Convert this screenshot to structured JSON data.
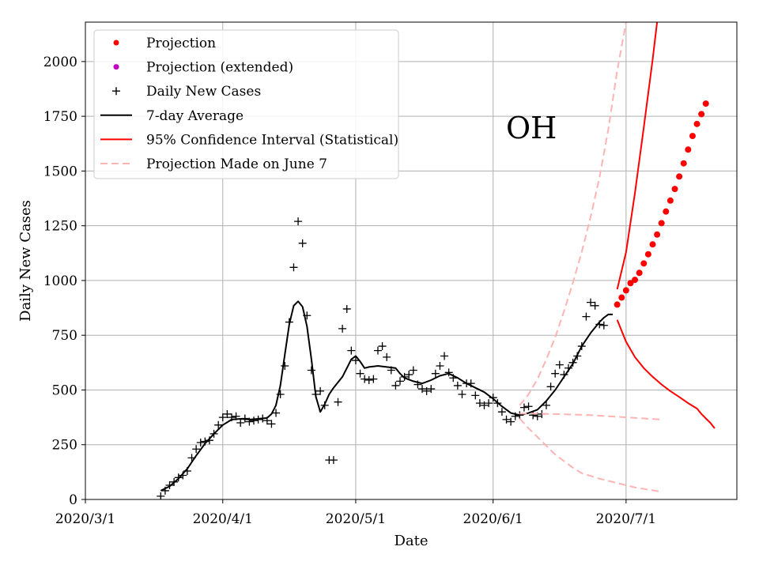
{
  "chart_data": {
    "type": "line",
    "title": "",
    "annotation": "OH",
    "xlabel": "Date",
    "ylabel": "Daily New Cases",
    "xlim": [
      0,
      147
    ],
    "ylim": [
      0,
      2180
    ],
    "grid": true,
    "legend_position": "top-left",
    "x_ticks": [
      {
        "day": 0,
        "label": "2020/3/1"
      },
      {
        "day": 31,
        "label": "2020/4/1"
      },
      {
        "day": 61,
        "label": "2020/5/1"
      },
      {
        "day": 92,
        "label": "2020/6/1"
      },
      {
        "day": 122,
        "label": "2020/7/1"
      }
    ],
    "y_ticks": [
      0,
      250,
      500,
      750,
      1000,
      1250,
      1500,
      1750,
      2000
    ],
    "legend": [
      {
        "label": "Projection",
        "marker": "dot",
        "color": "#ff0000"
      },
      {
        "label": "Projection (extended)",
        "marker": "dot",
        "color": "#bf00bf"
      },
      {
        "label": "Daily New Cases",
        "marker": "plus",
        "color": "#000000"
      },
      {
        "label": "7-day Average",
        "marker": "line",
        "color": "#000000"
      },
      {
        "label": "95% Confidence Interval (Statistical)",
        "marker": "line",
        "color": "#ff0000"
      },
      {
        "label": "Projection Made on June 7",
        "marker": "dash",
        "color": "#ffb3b3"
      }
    ],
    "x_units": "days since 2020/3/1",
    "series": [
      {
        "name": "Daily New Cases",
        "style": "plus",
        "color": "#000000",
        "points": [
          [
            17,
            15
          ],
          [
            18,
            40
          ],
          [
            19,
            65
          ],
          [
            20,
            80
          ],
          [
            21,
            100
          ],
          [
            22,
            110
          ],
          [
            23,
            130
          ],
          [
            24,
            190
          ],
          [
            25,
            230
          ],
          [
            26,
            260
          ],
          [
            27,
            265
          ],
          [
            28,
            270
          ],
          [
            29,
            300
          ],
          [
            30,
            340
          ],
          [
            31,
            375
          ],
          [
            32,
            390
          ],
          [
            33,
            375
          ],
          [
            34,
            380
          ],
          [
            35,
            350
          ],
          [
            36,
            370
          ],
          [
            37,
            355
          ],
          [
            38,
            360
          ],
          [
            39,
            365
          ],
          [
            40,
            370
          ],
          [
            41,
            360
          ],
          [
            42,
            345
          ],
          [
            43,
            395
          ],
          [
            44,
            480
          ],
          [
            45,
            610
          ],
          [
            46,
            810
          ],
          [
            47,
            1060
          ],
          [
            48,
            1270
          ],
          [
            49,
            1170
          ],
          [
            50,
            840
          ],
          [
            51,
            590
          ],
          [
            52,
            480
          ],
          [
            53,
            495
          ],
          [
            54,
            430
          ],
          [
            55,
            180
          ],
          [
            56,
            180
          ],
          [
            57,
            445
          ],
          [
            58,
            780
          ],
          [
            59,
            870
          ],
          [
            60,
            680
          ],
          [
            61,
            635
          ],
          [
            62,
            575
          ],
          [
            63,
            550
          ],
          [
            64,
            545
          ],
          [
            65,
            550
          ],
          [
            66,
            680
          ],
          [
            67,
            700
          ],
          [
            68,
            650
          ],
          [
            69,
            590
          ],
          [
            70,
            520
          ],
          [
            71,
            540
          ],
          [
            72,
            560
          ],
          [
            73,
            570
          ],
          [
            74,
            590
          ],
          [
            75,
            525
          ],
          [
            76,
            505
          ],
          [
            77,
            495
          ],
          [
            78,
            505
          ],
          [
            79,
            575
          ],
          [
            80,
            610
          ],
          [
            81,
            655
          ],
          [
            82,
            580
          ],
          [
            83,
            555
          ],
          [
            84,
            520
          ],
          [
            85,
            480
          ],
          [
            86,
            530
          ],
          [
            87,
            530
          ],
          [
            88,
            475
          ],
          [
            89,
            440
          ],
          [
            90,
            430
          ],
          [
            91,
            440
          ],
          [
            92,
            465
          ],
          [
            93,
            440
          ],
          [
            94,
            400
          ],
          [
            95,
            365
          ],
          [
            96,
            355
          ],
          [
            97,
            380
          ],
          [
            98,
            385
          ],
          [
            99,
            420
          ],
          [
            100,
            425
          ],
          [
            101,
            385
          ],
          [
            102,
            380
          ],
          [
            103,
            390
          ],
          [
            104,
            430
          ],
          [
            105,
            515
          ],
          [
            106,
            575
          ],
          [
            107,
            615
          ],
          [
            108,
            570
          ],
          [
            109,
            600
          ],
          [
            110,
            625
          ],
          [
            111,
            655
          ],
          [
            112,
            700
          ],
          [
            113,
            835
          ],
          [
            114,
            900
          ],
          [
            115,
            885
          ],
          [
            116,
            800
          ],
          [
            117,
            795
          ]
        ]
      },
      {
        "name": "7-day Average",
        "style": "line",
        "color": "#000000",
        "points": [
          [
            17,
            40
          ],
          [
            19,
            60
          ],
          [
            21,
            95
          ],
          [
            23,
            140
          ],
          [
            25,
            200
          ],
          [
            27,
            255
          ],
          [
            29,
            300
          ],
          [
            31,
            340
          ],
          [
            33,
            365
          ],
          [
            35,
            368
          ],
          [
            37,
            365
          ],
          [
            39,
            368
          ],
          [
            41,
            372
          ],
          [
            42,
            390
          ],
          [
            43,
            430
          ],
          [
            44,
            520
          ],
          [
            45,
            660
          ],
          [
            46,
            800
          ],
          [
            47,
            885
          ],
          [
            48,
            905
          ],
          [
            49,
            880
          ],
          [
            50,
            790
          ],
          [
            51,
            640
          ],
          [
            52,
            470
          ],
          [
            53,
            400
          ],
          [
            54,
            435
          ],
          [
            55,
            480
          ],
          [
            56,
            510
          ],
          [
            57,
            535
          ],
          [
            58,
            560
          ],
          [
            59,
            600
          ],
          [
            60,
            640
          ],
          [
            61,
            655
          ],
          [
            62,
            630
          ],
          [
            63,
            600
          ],
          [
            64,
            605
          ],
          [
            66,
            610
          ],
          [
            68,
            605
          ],
          [
            70,
            600
          ],
          [
            71,
            575
          ],
          [
            72,
            555
          ],
          [
            74,
            540
          ],
          [
            76,
            530
          ],
          [
            78,
            545
          ],
          [
            80,
            565
          ],
          [
            82,
            575
          ],
          [
            84,
            555
          ],
          [
            86,
            530
          ],
          [
            88,
            510
          ],
          [
            90,
            490
          ],
          [
            92,
            460
          ],
          [
            94,
            425
          ],
          [
            96,
            395
          ],
          [
            98,
            385
          ],
          [
            100,
            395
          ],
          [
            102,
            410
          ],
          [
            104,
            450
          ],
          [
            106,
            500
          ],
          [
            108,
            560
          ],
          [
            110,
            620
          ],
          [
            112,
            700
          ],
          [
            114,
            760
          ],
          [
            116,
            810
          ],
          [
            117,
            830
          ],
          [
            118,
            845
          ],
          [
            119,
            845
          ]
        ]
      },
      {
        "name": "Projection",
        "style": "dot",
        "color": "#ff0000",
        "points": [
          [
            120,
            890
          ],
          [
            121,
            922
          ],
          [
            122,
            955
          ],
          [
            123,
            988
          ],
          [
            124,
            1003
          ],
          [
            125,
            1035
          ],
          [
            126,
            1078
          ],
          [
            127,
            1120
          ],
          [
            128,
            1165
          ],
          [
            129,
            1210
          ],
          [
            130,
            1262
          ],
          [
            131,
            1315
          ],
          [
            132,
            1365
          ],
          [
            133,
            1418
          ],
          [
            134,
            1475
          ],
          [
            135,
            1535
          ],
          [
            136,
            1598
          ],
          [
            137,
            1660
          ],
          [
            138,
            1715
          ],
          [
            139,
            1760
          ],
          [
            140,
            1808
          ]
        ]
      },
      {
        "name": "CI upper (Statistical)",
        "style": "line",
        "color": "#ff0000",
        "points": [
          [
            120,
            960
          ],
          [
            122,
            1130
          ],
          [
            124,
            1400
          ],
          [
            126,
            1700
          ],
          [
            128,
            2010
          ],
          [
            129,
            2180
          ]
        ]
      },
      {
        "name": "CI lower (Statistical)",
        "style": "line",
        "color": "#ff0000",
        "points": [
          [
            120,
            820
          ],
          [
            121,
            770
          ],
          [
            122,
            720
          ],
          [
            124,
            650
          ],
          [
            126,
            600
          ],
          [
            128,
            560
          ],
          [
            130,
            525
          ],
          [
            132,
            495
          ],
          [
            134,
            468
          ],
          [
            136,
            440
          ],
          [
            138,
            415
          ],
          [
            139,
            390
          ],
          [
            140,
            370
          ],
          [
            141,
            350
          ],
          [
            142,
            325
          ]
        ]
      },
      {
        "name": "Projection Made on June 7 (center)",
        "style": "dash",
        "color": "#ffb3b3",
        "points": [
          [
            98,
            392
          ],
          [
            102,
            392
          ],
          [
            106,
            390
          ],
          [
            110,
            388
          ],
          [
            114,
            385
          ],
          [
            118,
            380
          ],
          [
            122,
            375
          ],
          [
            126,
            370
          ],
          [
            130,
            365
          ]
        ]
      },
      {
        "name": "Projection Made on June 7 (upper)",
        "style": "dash",
        "color": "#ffb3b3",
        "points": [
          [
            98,
            430
          ],
          [
            100,
            480
          ],
          [
            102,
            550
          ],
          [
            104,
            640
          ],
          [
            106,
            740
          ],
          [
            108,
            860
          ],
          [
            110,
            990
          ],
          [
            112,
            1130
          ],
          [
            114,
            1290
          ],
          [
            116,
            1470
          ],
          [
            118,
            1690
          ],
          [
            120,
            1960
          ],
          [
            122,
            2180
          ]
        ]
      },
      {
        "name": "Projection Made on June 7 (lower)",
        "style": "dash",
        "color": "#ffb3b3",
        "points": [
          [
            98,
            370
          ],
          [
            100,
            325
          ],
          [
            102,
            285
          ],
          [
            104,
            245
          ],
          [
            106,
            205
          ],
          [
            108,
            175
          ],
          [
            110,
            145
          ],
          [
            112,
            120
          ],
          [
            116,
            95
          ],
          [
            120,
            75
          ],
          [
            124,
            55
          ],
          [
            128,
            42
          ],
          [
            130,
            35
          ]
        ]
      }
    ]
  }
}
